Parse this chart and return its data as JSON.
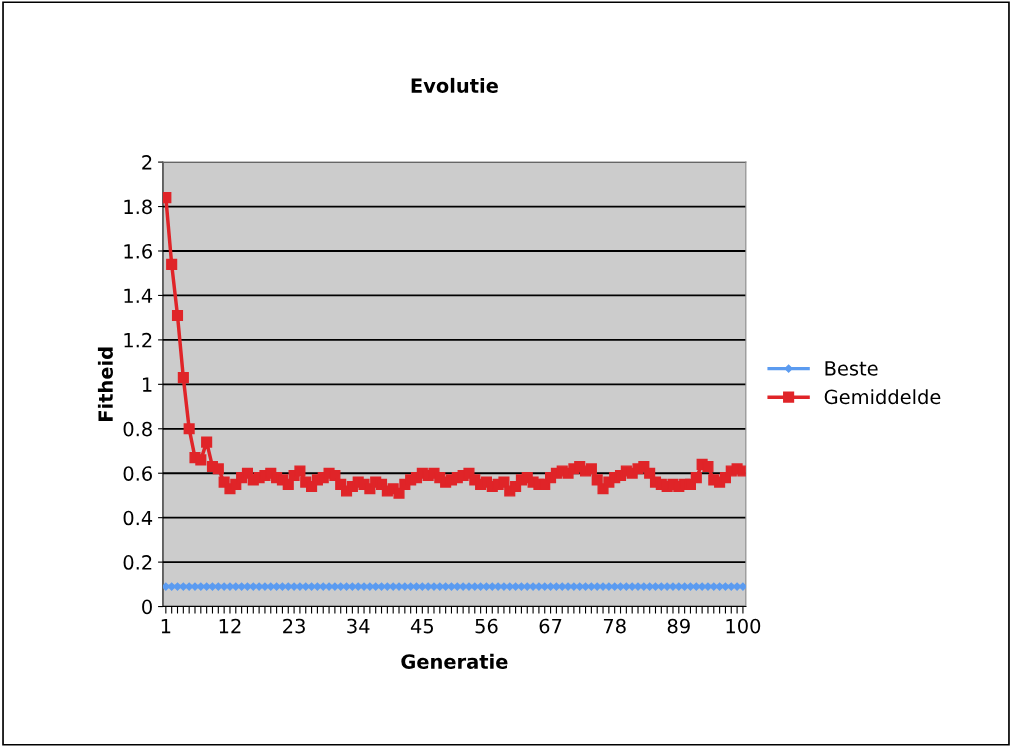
{
  "chart_data": {
    "type": "line",
    "title": "Evolutie",
    "xlabel": "Generatie",
    "ylabel": "Fitheid",
    "categories": [
      "1",
      null,
      null,
      null,
      null,
      null,
      null,
      null,
      null,
      null,
      null,
      "12",
      null,
      null,
      null,
      null,
      null,
      null,
      null,
      null,
      null,
      null,
      "23",
      null,
      null,
      null,
      null,
      null,
      null,
      null,
      null,
      null,
      null,
      "34",
      null,
      null,
      null,
      null,
      null,
      null,
      null,
      null,
      null,
      null,
      "45",
      null,
      null,
      null,
      null,
      null,
      null,
      null,
      null,
      null,
      null,
      "56",
      null,
      null,
      null,
      null,
      null,
      null,
      null,
      null,
      null,
      null,
      "67",
      null,
      null,
      null,
      null,
      null,
      null,
      null,
      null,
      null,
      null,
      "78",
      null,
      null,
      null,
      null,
      null,
      null,
      null,
      null,
      null,
      null,
      "89",
      null,
      null,
      null,
      null,
      null,
      null,
      null,
      null,
      null,
      null,
      "100"
    ],
    "series": [
      {
        "name": "Beste",
        "color": "#5b9bf0",
        "marker": "diamond",
        "values": [
          0.09,
          0.09,
          0.09,
          0.09,
          0.09,
          0.09,
          0.09,
          0.09,
          0.09,
          0.09,
          0.09,
          0.09,
          0.09,
          0.09,
          0.09,
          0.09,
          0.09,
          0.09,
          0.09,
          0.09,
          0.09,
          0.09,
          0.09,
          0.09,
          0.09,
          0.09,
          0.09,
          0.09,
          0.09,
          0.09,
          0.09,
          0.09,
          0.09,
          0.09,
          0.09,
          0.09,
          0.09,
          0.09,
          0.09,
          0.09,
          0.09,
          0.09,
          0.09,
          0.09,
          0.09,
          0.09,
          0.09,
          0.09,
          0.09,
          0.09,
          0.09,
          0.09,
          0.09,
          0.09,
          0.09,
          0.09,
          0.09,
          0.09,
          0.09,
          0.09,
          0.09,
          0.09,
          0.09,
          0.09,
          0.09,
          0.09,
          0.09,
          0.09,
          0.09,
          0.09,
          0.09,
          0.09,
          0.09,
          0.09,
          0.09,
          0.09,
          0.09,
          0.09,
          0.09,
          0.09,
          0.09,
          0.09,
          0.09,
          0.09,
          0.09,
          0.09,
          0.09,
          0.09,
          0.09,
          0.09,
          0.09,
          0.09,
          0.09,
          0.09,
          0.09,
          0.09,
          0.09,
          0.09,
          0.09,
          0.09
        ]
      },
      {
        "name": "Gemiddelde",
        "color": "#e02428",
        "marker": "square",
        "values": [
          1.84,
          1.54,
          1.31,
          1.03,
          0.8,
          0.67,
          0.66,
          0.74,
          0.63,
          0.62,
          0.56,
          0.53,
          0.55,
          0.58,
          0.6,
          0.57,
          0.58,
          0.59,
          0.6,
          0.58,
          0.57,
          0.55,
          0.59,
          0.61,
          0.56,
          0.54,
          0.57,
          0.58,
          0.6,
          0.59,
          0.55,
          0.52,
          0.54,
          0.56,
          0.55,
          0.53,
          0.56,
          0.55,
          0.52,
          0.53,
          0.51,
          0.55,
          0.57,
          0.58,
          0.6,
          0.59,
          0.6,
          0.58,
          0.56,
          0.57,
          0.58,
          0.59,
          0.6,
          0.57,
          0.55,
          0.56,
          0.54,
          0.55,
          0.56,
          0.52,
          0.54,
          0.57,
          0.58,
          0.56,
          0.55,
          0.55,
          0.58,
          0.6,
          0.61,
          0.6,
          0.62,
          0.63,
          0.61,
          0.62,
          0.57,
          0.53,
          0.56,
          0.58,
          0.59,
          0.61,
          0.6,
          0.62,
          0.63,
          0.6,
          0.56,
          0.55,
          0.54,
          0.55,
          0.54,
          0.55,
          0.55,
          0.58,
          0.64,
          0.63,
          0.57,
          0.56,
          0.58,
          0.61,
          0.62,
          0.61
        ]
      }
    ],
    "ylim": [
      0,
      2
    ],
    "yticks": [
      0,
      0.2,
      0.4,
      0.6,
      0.8,
      1,
      1.2,
      1.4,
      1.6,
      1.8,
      2
    ],
    "grid": "y",
    "legend": "right"
  }
}
